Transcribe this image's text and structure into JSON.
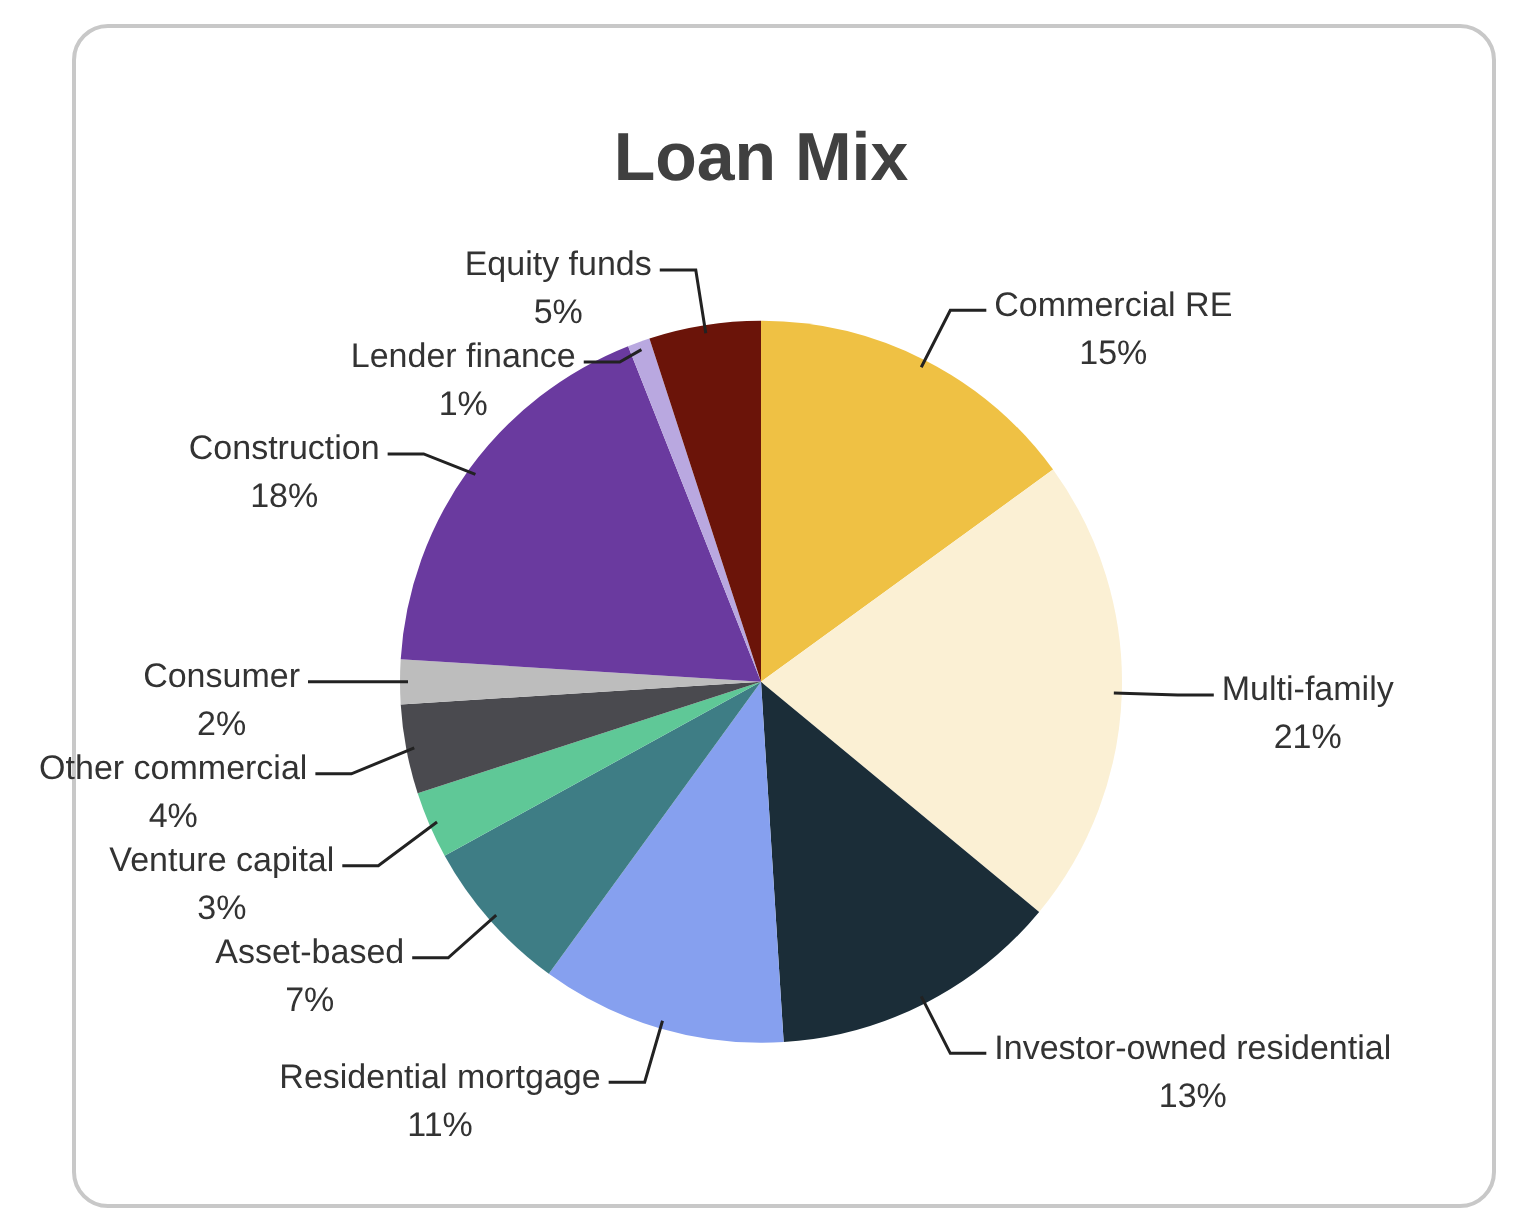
{
  "chart_data": {
    "type": "pie",
    "title": "Loan Mix",
    "categories": [
      "Commercial RE",
      "Multi-family",
      "Investor-owned residential",
      "Residential mortgage",
      "Asset-based",
      "Venture capital",
      "Other commercial",
      "Consumer",
      "Construction",
      "Lender finance",
      "Equity funds"
    ],
    "values": [
      15,
      21,
      13,
      11,
      7,
      3,
      4,
      2,
      18,
      1,
      5
    ],
    "value_labels": [
      "15%",
      "21%",
      "13%",
      "11%",
      "7%",
      "3%",
      "4%",
      "2%",
      "18%",
      "1%",
      "5%"
    ],
    "colors": [
      "#efc144",
      "#fbf0d4",
      "#1b2d38",
      "#86a0ef",
      "#3e7d85",
      "#5fc897",
      "#4a4a4f",
      "#bdbdbd",
      "#6a3a9f",
      "#b9a8e0",
      "#6b1409"
    ],
    "legend": false
  }
}
